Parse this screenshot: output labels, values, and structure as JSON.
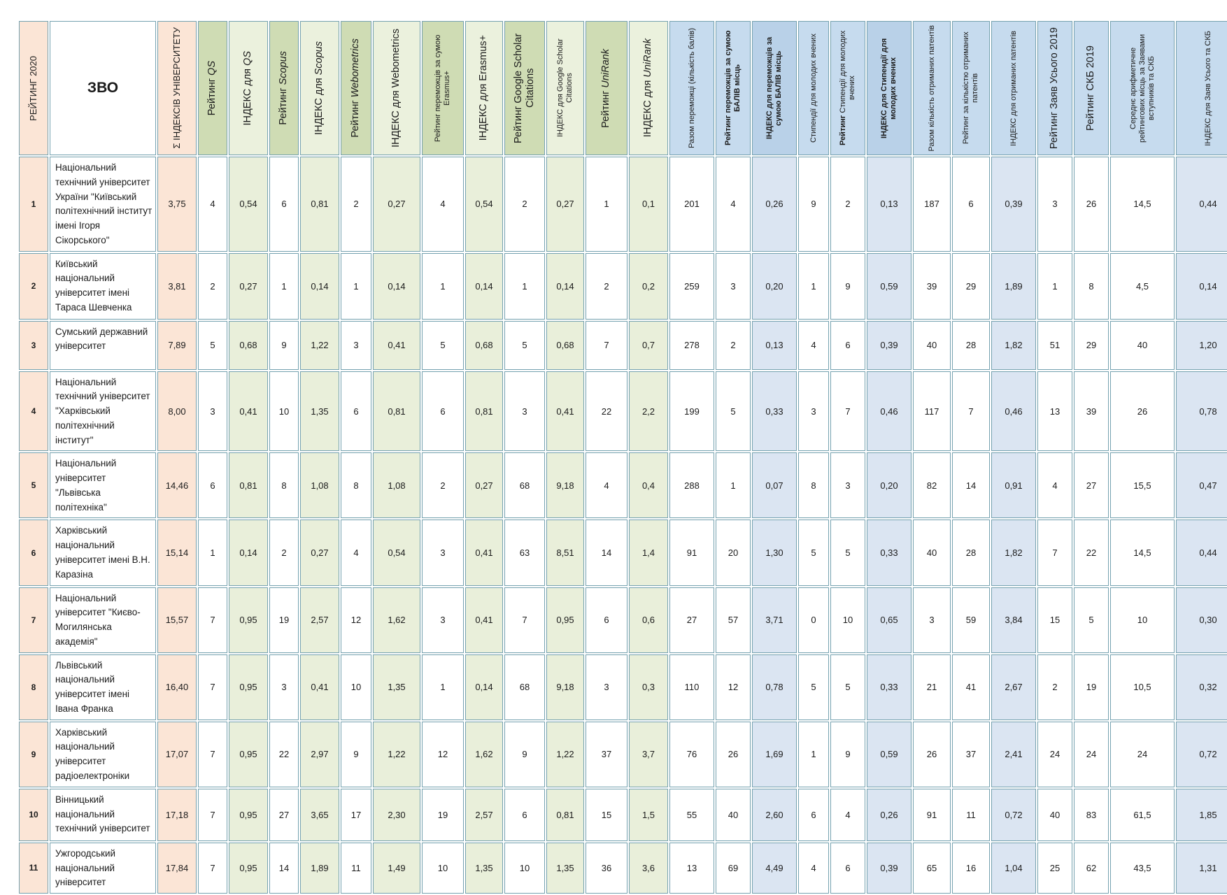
{
  "document": {
    "language": "uk",
    "kind": "university-ranking-table",
    "title_column": "РЕЙТИНГ 2020"
  },
  "table": {
    "columns": [
      {
        "id": "rating-2020",
        "label": "РЕЙТИНГ 2020",
        "head": "peach",
        "body": "peach",
        "vertical": true,
        "hsize": "m",
        "cellclass": "rank"
      },
      {
        "id": "zvo",
        "label": "ЗВО",
        "head": "white",
        "body": "white",
        "vertical": false,
        "hsize": "m",
        "bold": true,
        "cellclass": "name"
      },
      {
        "id": "sum-index",
        "label": "Σ ІНДЕКСІВ УНІВЕРСИТЕТУ",
        "head": "peach",
        "body": "peach",
        "vertical": true,
        "hsize": "m"
      },
      {
        "id": "qs-rating",
        "label": "Рейтинг QS",
        "italic": "QS",
        "head": "gmid",
        "body": "white",
        "vertical": true,
        "hsize": "l"
      },
      {
        "id": "qs-index",
        "label": "ІНДЕКС для QS",
        "italic": "QS",
        "head": "glight",
        "body": "gbody",
        "vertical": true,
        "hsize": "l"
      },
      {
        "id": "scopus-rating",
        "label": "Рейтинг  Scopus",
        "italic": "Scopus",
        "head": "gmid",
        "body": "white",
        "vertical": true,
        "hsize": "l"
      },
      {
        "id": "scopus-index",
        "label": "ІНДЕКС для Scopus",
        "italic": "Scopus",
        "head": "glight",
        "body": "gbody",
        "vertical": true,
        "hsize": "l"
      },
      {
        "id": "webometrics-rating",
        "label": "Рейтинг  Webometrics",
        "italic": "Webometrics",
        "head": "gmid",
        "body": "white",
        "vertical": true,
        "hsize": "l"
      },
      {
        "id": "webometrics-index",
        "label": "ІНДЕКС для Webometrics",
        "head": "glight",
        "body": "gbody",
        "vertical": true,
        "hsize": "l"
      },
      {
        "id": "erasmus-rating",
        "label": "Рейтинг переможців за сумою Erasmus+",
        "head": "gmid",
        "body": "white",
        "vertical": true,
        "hsize": "s"
      },
      {
        "id": "erasmus-index",
        "label": "ІНДЕКС для  Erasmus+",
        "head": "glight",
        "body": "gbody",
        "vertical": true,
        "hsize": "l"
      },
      {
        "id": "gsc-rating",
        "label": "Рейтинг  Google Scholar Citations",
        "head": "gmid",
        "body": "white",
        "vertical": true,
        "hsize": "l"
      },
      {
        "id": "gsc-index",
        "label": "ІНДЕКС для Google Scholar Citations",
        "head": "glight",
        "body": "gbody",
        "vertical": true,
        "hsize": "s"
      },
      {
        "id": "unirank-rating",
        "label": "Рейтинг  UniRank",
        "italic": "UniRank",
        "head": "gmid",
        "body": "white",
        "vertical": true,
        "hsize": "l"
      },
      {
        "id": "unirank-index",
        "label": "ІНДЕКС для UniRank",
        "italic": "UniRank",
        "head": "glight",
        "body": "gbody",
        "vertical": true,
        "hsize": "l"
      },
      {
        "id": "winners-total",
        "label": "Разом переможці (кількість балів)",
        "head": "blight",
        "body": "white",
        "vertical": true,
        "hsize": "s"
      },
      {
        "id": "winners-rating",
        "label": "Рейтинг  переможців за сумою БАЛІВ місць",
        "head": "blight",
        "body": "white",
        "vertical": true,
        "hsize": "s",
        "bold": true
      },
      {
        "id": "winners-index",
        "label": "ІНДЕКС для  переможців за сумою БАЛІВ місць",
        "head": "bmid",
        "body": "bbody",
        "vertical": true,
        "hsize": "s",
        "bold": true
      },
      {
        "id": "scholarships",
        "label": "Стипендії для молодих вчених",
        "head": "blight",
        "body": "white",
        "vertical": true,
        "hsize": "s"
      },
      {
        "id": "scholarships-rating",
        "label": "Рейтинг  Стипендії для молодих вчених",
        "head": "blight",
        "body": "white",
        "vertical": true,
        "hsize": "s",
        "bold_part": "Рейтинг"
      },
      {
        "id": "scholarships-index",
        "label": "ІНДЕКС для  Стипендії для молодих вчених",
        "head": "bmid",
        "body": "bbody",
        "vertical": true,
        "hsize": "s",
        "bold": true
      },
      {
        "id": "patents-total",
        "label": "Разом  кількість  отриманих патентів",
        "head": "blight",
        "body": "white",
        "vertical": true,
        "hsize": "s"
      },
      {
        "id": "patents-rating",
        "label": "Рейтинг за кількістю отриманих патентів",
        "head": "blight",
        "body": "white",
        "vertical": true,
        "hsize": "s"
      },
      {
        "id": "patents-index",
        "label": "ІНДЕКС для  отриманих патентів",
        "head": "blight",
        "body": "bbody",
        "vertical": true,
        "hsize": "s"
      },
      {
        "id": "applications-rating",
        "label": "Рейтинг  Заяв Усього 2019",
        "head": "blight",
        "body": "white",
        "vertical": true,
        "hsize": "l"
      },
      {
        "id": "skb-rating",
        "label": "Рейтинг  СКБ 2019",
        "head": "blight",
        "body": "white",
        "vertical": true,
        "hsize": "l"
      },
      {
        "id": "avg-rank-places",
        "label": "Середнє арифметичне рейтингових місць за Заявами вступників та СКБ",
        "head": "blight",
        "body": "white",
        "vertical": true,
        "hsize": "s"
      },
      {
        "id": "applications-skb-index",
        "label": "ІНДЕКС для  Заяв  Усього та СКБ",
        "head": "blight",
        "body": "bbody",
        "vertical": true,
        "hsize": "s"
      }
    ],
    "rows": [
      [
        "1",
        "Національний технічний університет України \"Київський політехнічний інститут імені Ігоря Сікорського\"",
        "3,75",
        "4",
        "0,54",
        "6",
        "0,81",
        "2",
        "0,27",
        "4",
        "0,54",
        "2",
        "0,27",
        "1",
        "0,1",
        "201",
        "4",
        "0,26",
        "9",
        "2",
        "0,13",
        "187",
        "6",
        "0,39",
        "3",
        "26",
        "14,5",
        "0,44"
      ],
      [
        "2",
        "Київський національний університет імені Тараса Шевченка",
        "3,81",
        "2",
        "0,27",
        "1",
        "0,14",
        "1",
        "0,14",
        "1",
        "0,14",
        "1",
        "0,14",
        "2",
        "0,2",
        "259",
        "3",
        "0,20",
        "1",
        "9",
        "0,59",
        "39",
        "29",
        "1,89",
        "1",
        "8",
        "4,5",
        "0,14"
      ],
      [
        "3",
        "Сумський державний університет",
        "7,89",
        "5",
        "0,68",
        "9",
        "1,22",
        "3",
        "0,41",
        "5",
        "0,68",
        "5",
        "0,68",
        "7",
        "0,7",
        "278",
        "2",
        "0,13",
        "4",
        "6",
        "0,39",
        "40",
        "28",
        "1,82",
        "51",
        "29",
        "40",
        "1,20"
      ],
      [
        "4",
        "Національний технічний університет \"Харківський політехнічний інститут\"",
        "8,00",
        "3",
        "0,41",
        "10",
        "1,35",
        "6",
        "0,81",
        "6",
        "0,81",
        "3",
        "0,41",
        "22",
        "2,2",
        "199",
        "5",
        "0,33",
        "3",
        "7",
        "0,46",
        "117",
        "7",
        "0,46",
        "13",
        "39",
        "26",
        "0,78"
      ],
      [
        "5",
        "Національний університет \"Львівська політехніка\"",
        "14,46",
        "6",
        "0,81",
        "8",
        "1,08",
        "8",
        "1,08",
        "2",
        "0,27",
        "68",
        "9,18",
        "4",
        "0,4",
        "288",
        "1",
        "0,07",
        "8",
        "3",
        "0,20",
        "82",
        "14",
        "0,91",
        "4",
        "27",
        "15,5",
        "0,47"
      ],
      [
        "6",
        "Харківський національний університет імені В.Н. Каразіна",
        "15,14",
        "1",
        "0,14",
        "2",
        "0,27",
        "4",
        "0,54",
        "3",
        "0,41",
        "63",
        "8,51",
        "14",
        "1,4",
        "91",
        "20",
        "1,30",
        "5",
        "5",
        "0,33",
        "40",
        "28",
        "1,82",
        "7",
        "22",
        "14,5",
        "0,44"
      ],
      [
        "7",
        "Національний університет \"Києво-Могилянська академія\"",
        "15,57",
        "7",
        "0,95",
        "19",
        "2,57",
        "12",
        "1,62",
        "3",
        "0,41",
        "7",
        "0,95",
        "6",
        "0,6",
        "27",
        "57",
        "3,71",
        "0",
        "10",
        "0,65",
        "3",
        "59",
        "3,84",
        "15",
        "5",
        "10",
        "0,30"
      ],
      [
        "8",
        "Львівський національний університет імені Івана Франка",
        "16,40",
        "7",
        "0,95",
        "3",
        "0,41",
        "10",
        "1,35",
        "1",
        "0,14",
        "68",
        "9,18",
        "3",
        "0,3",
        "110",
        "12",
        "0,78",
        "5",
        "5",
        "0,33",
        "21",
        "41",
        "2,67",
        "2",
        "19",
        "10,5",
        "0,32"
      ],
      [
        "9",
        "Харківський національний університет радіоелектроніки",
        "17,07",
        "7",
        "0,95",
        "22",
        "2,97",
        "9",
        "1,22",
        "12",
        "1,62",
        "9",
        "1,22",
        "37",
        "3,7",
        "76",
        "26",
        "1,69",
        "1",
        "9",
        "0,59",
        "26",
        "37",
        "2,41",
        "24",
        "24",
        "24",
        "0,72"
      ],
      [
        "10",
        "Вінницький національний технічний університет",
        "17,18",
        "7",
        "0,95",
        "27",
        "3,65",
        "17",
        "2,30",
        "19",
        "2,57",
        "6",
        "0,81",
        "15",
        "1,5",
        "55",
        "40",
        "2,60",
        "6",
        "4",
        "0,26",
        "91",
        "11",
        "0,72",
        "40",
        "83",
        "61,5",
        "1,85"
      ],
      [
        "11",
        "Ужгородський національний університет",
        "17,84",
        "7",
        "0,95",
        "14",
        "1,89",
        "11",
        "1,49",
        "10",
        "1,35",
        "10",
        "1,35",
        "36",
        "3,6",
        "13",
        "69",
        "4,49",
        "4",
        "6",
        "0,39",
        "65",
        "16",
        "1,04",
        "25",
        "62",
        "43,5",
        "1,31"
      ]
    ],
    "colors": {
      "border": "#74a1af",
      "peach": "#fbe5d6",
      "green_header": "#cfdcb4",
      "green_light": "#ebf1dd",
      "green_body": "#e9efda",
      "blue_header": "#c6dbee",
      "blue_header_dark": "#b9d1e8",
      "blue_body": "#dbe5f2"
    }
  }
}
